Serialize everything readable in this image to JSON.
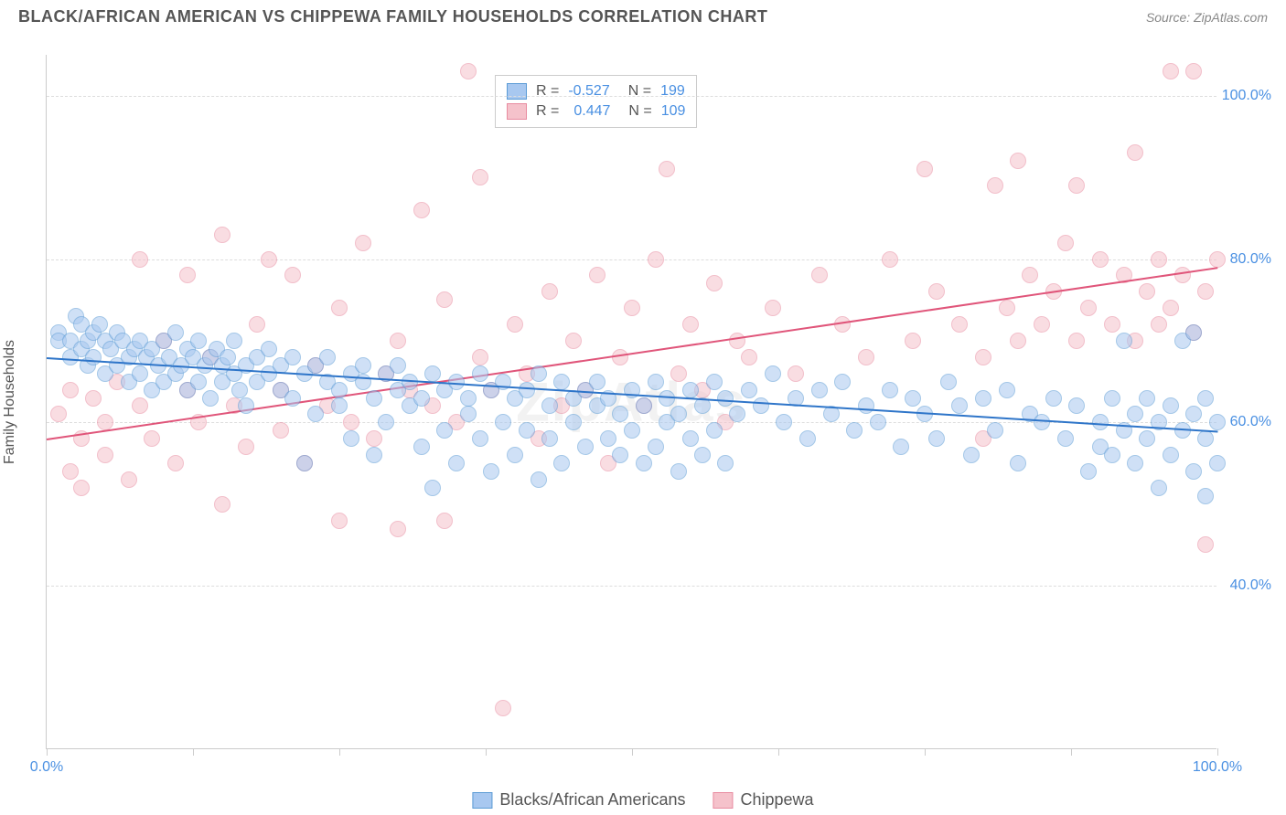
{
  "header": {
    "title": "BLACK/AFRICAN AMERICAN VS CHIPPEWA FAMILY HOUSEHOLDS CORRELATION CHART",
    "source": "Source: ZipAtlas.com"
  },
  "watermark": "ZipAtlas",
  "chart": {
    "type": "scatter",
    "y_axis_label": "Family Households",
    "xlim": [
      0,
      100
    ],
    "ylim": [
      20,
      105
    ],
    "ytick_values": [
      40,
      60,
      80,
      100
    ],
    "ytick_labels": [
      "40.0%",
      "60.0%",
      "80.0%",
      "100.0%"
    ],
    "xtick_values": [
      0,
      12.5,
      25,
      37.5,
      50,
      62.5,
      75,
      87.5,
      100
    ],
    "xtick_labels_shown": {
      "0": "0.0%",
      "100": "100.0%"
    },
    "grid_color": "#dddddd",
    "axis_color": "#cccccc",
    "background_color": "#ffffff",
    "ytick_label_color": "#4a90e2",
    "xtick_label_color": "#4a90e2",
    "marker_radius": 9,
    "marker_opacity": 0.55,
    "marker_border_width": 1,
    "series": {
      "blue": {
        "label": "Blacks/African Americans",
        "fill_color": "#a8c8f0",
        "border_color": "#5b9bd5",
        "R": "-0.527",
        "N": "199",
        "trendline": {
          "x1": 0,
          "y1": 68,
          "x2": 100,
          "y2": 59,
          "color": "#2e75c9",
          "width": 2
        },
        "points": [
          [
            1,
            71
          ],
          [
            1,
            70
          ],
          [
            2,
            70
          ],
          [
            2,
            68
          ],
          [
            2.5,
            73
          ],
          [
            3,
            72
          ],
          [
            3,
            69
          ],
          [
            3.5,
            70
          ],
          [
            3.5,
            67
          ],
          [
            4,
            71
          ],
          [
            4,
            68
          ],
          [
            4.5,
            72
          ],
          [
            5,
            70
          ],
          [
            5,
            66
          ],
          [
            5.5,
            69
          ],
          [
            6,
            71
          ],
          [
            6,
            67
          ],
          [
            6.5,
            70
          ],
          [
            7,
            68
          ],
          [
            7,
            65
          ],
          [
            7.5,
            69
          ],
          [
            8,
            70
          ],
          [
            8,
            66
          ],
          [
            8.5,
            68
          ],
          [
            9,
            69
          ],
          [
            9,
            64
          ],
          [
            9.5,
            67
          ],
          [
            10,
            70
          ],
          [
            10,
            65
          ],
          [
            10.5,
            68
          ],
          [
            11,
            71
          ],
          [
            11,
            66
          ],
          [
            11.5,
            67
          ],
          [
            12,
            69
          ],
          [
            12,
            64
          ],
          [
            12.5,
            68
          ],
          [
            13,
            70
          ],
          [
            13,
            65
          ],
          [
            13.5,
            67
          ],
          [
            14,
            68
          ],
          [
            14,
            63
          ],
          [
            14.5,
            69
          ],
          [
            15,
            67
          ],
          [
            15,
            65
          ],
          [
            15.5,
            68
          ],
          [
            16,
            66
          ],
          [
            16,
            70
          ],
          [
            16.5,
            64
          ],
          [
            17,
            67
          ],
          [
            17,
            62
          ],
          [
            18,
            68
          ],
          [
            18,
            65
          ],
          [
            19,
            66
          ],
          [
            19,
            69
          ],
          [
            20,
            64
          ],
          [
            20,
            67
          ],
          [
            21,
            68
          ],
          [
            21,
            63
          ],
          [
            22,
            66
          ],
          [
            22,
            55
          ],
          [
            23,
            67
          ],
          [
            23,
            61
          ],
          [
            24,
            65
          ],
          [
            24,
            68
          ],
          [
            25,
            64
          ],
          [
            25,
            62
          ],
          [
            26,
            66
          ],
          [
            26,
            58
          ],
          [
            27,
            65
          ],
          [
            27,
            67
          ],
          [
            28,
            63
          ],
          [
            28,
            56
          ],
          [
            29,
            66
          ],
          [
            29,
            60
          ],
          [
            30,
            64
          ],
          [
            30,
            67
          ],
          [
            31,
            65
          ],
          [
            31,
            62
          ],
          [
            32,
            63
          ],
          [
            32,
            57
          ],
          [
            33,
            66
          ],
          [
            33,
            52
          ],
          [
            34,
            64
          ],
          [
            34,
            59
          ],
          [
            35,
            65
          ],
          [
            35,
            55
          ],
          [
            36,
            63
          ],
          [
            36,
            61
          ],
          [
            37,
            66
          ],
          [
            37,
            58
          ],
          [
            38,
            64
          ],
          [
            38,
            54
          ],
          [
            39,
            65
          ],
          [
            39,
            60
          ],
          [
            40,
            63
          ],
          [
            40,
            56
          ],
          [
            41,
            64
          ],
          [
            41,
            59
          ],
          [
            42,
            66
          ],
          [
            42,
            53
          ],
          [
            43,
            62
          ],
          [
            43,
            58
          ],
          [
            44,
            65
          ],
          [
            44,
            55
          ],
          [
            45,
            63
          ],
          [
            45,
            60
          ],
          [
            46,
            64
          ],
          [
            46,
            57
          ],
          [
            47,
            62
          ],
          [
            47,
            65
          ],
          [
            48,
            63
          ],
          [
            48,
            58
          ],
          [
            49,
            61
          ],
          [
            49,
            56
          ],
          [
            50,
            64
          ],
          [
            50,
            59
          ],
          [
            51,
            62
          ],
          [
            51,
            55
          ],
          [
            52,
            65
          ],
          [
            52,
            57
          ],
          [
            53,
            63
          ],
          [
            53,
            60
          ],
          [
            54,
            61
          ],
          [
            54,
            54
          ],
          [
            55,
            64
          ],
          [
            55,
            58
          ],
          [
            56,
            62
          ],
          [
            56,
            56
          ],
          [
            57,
            65
          ],
          [
            57,
            59
          ],
          [
            58,
            63
          ],
          [
            58,
            55
          ],
          [
            59,
            61
          ],
          [
            60,
            64
          ],
          [
            61,
            62
          ],
          [
            62,
            66
          ],
          [
            63,
            60
          ],
          [
            64,
            63
          ],
          [
            65,
            58
          ],
          [
            66,
            64
          ],
          [
            67,
            61
          ],
          [
            68,
            65
          ],
          [
            69,
            59
          ],
          [
            70,
            62
          ],
          [
            71,
            60
          ],
          [
            72,
            64
          ],
          [
            73,
            57
          ],
          [
            74,
            63
          ],
          [
            75,
            61
          ],
          [
            76,
            58
          ],
          [
            77,
            65
          ],
          [
            78,
            62
          ],
          [
            79,
            56
          ],
          [
            80,
            63
          ],
          [
            81,
            59
          ],
          [
            82,
            64
          ],
          [
            83,
            55
          ],
          [
            84,
            61
          ],
          [
            85,
            60
          ],
          [
            86,
            63
          ],
          [
            87,
            58
          ],
          [
            88,
            62
          ],
          [
            89,
            54
          ],
          [
            90,
            60
          ],
          [
            90,
            57
          ],
          [
            91,
            63
          ],
          [
            91,
            56
          ],
          [
            92,
            59
          ],
          [
            92,
            70
          ],
          [
            93,
            61
          ],
          [
            93,
            55
          ],
          [
            94,
            58
          ],
          [
            94,
            63
          ],
          [
            95,
            60
          ],
          [
            95,
            52
          ],
          [
            96,
            62
          ],
          [
            96,
            56
          ],
          [
            97,
            59
          ],
          [
            97,
            70
          ],
          [
            98,
            61
          ],
          [
            98,
            54
          ],
          [
            98,
            71
          ],
          [
            99,
            58
          ],
          [
            99,
            63
          ],
          [
            99,
            51
          ],
          [
            100,
            60
          ],
          [
            100,
            55
          ]
        ]
      },
      "pink": {
        "label": "Chippewa",
        "fill_color": "#f5c2cb",
        "border_color": "#e88ba0",
        "R": "0.447",
        "N": "109",
        "trendline": {
          "x1": 0,
          "y1": 58,
          "x2": 100,
          "y2": 79,
          "color": "#e0557a",
          "width": 2
        },
        "points": [
          [
            1,
            61
          ],
          [
            2,
            54
          ],
          [
            2,
            64
          ],
          [
            3,
            58
          ],
          [
            3,
            52
          ],
          [
            4,
            63
          ],
          [
            5,
            56
          ],
          [
            5,
            60
          ],
          [
            6,
            65
          ],
          [
            7,
            53
          ],
          [
            8,
            62
          ],
          [
            8,
            80
          ],
          [
            9,
            58
          ],
          [
            10,
            70
          ],
          [
            11,
            55
          ],
          [
            12,
            64
          ],
          [
            12,
            78
          ],
          [
            13,
            60
          ],
          [
            14,
            68
          ],
          [
            15,
            50
          ],
          [
            15,
            83
          ],
          [
            16,
            62
          ],
          [
            17,
            57
          ],
          [
            18,
            72
          ],
          [
            19,
            80
          ],
          [
            20,
            64
          ],
          [
            20,
            59
          ],
          [
            21,
            78
          ],
          [
            22,
            55
          ],
          [
            23,
            67
          ],
          [
            24,
            62
          ],
          [
            25,
            48
          ],
          [
            25,
            74
          ],
          [
            26,
            60
          ],
          [
            27,
            82
          ],
          [
            28,
            58
          ],
          [
            29,
            66
          ],
          [
            30,
            47
          ],
          [
            30,
            70
          ],
          [
            31,
            64
          ],
          [
            32,
            86
          ],
          [
            33,
            62
          ],
          [
            34,
            48
          ],
          [
            34,
            75
          ],
          [
            35,
            60
          ],
          [
            36,
            103
          ],
          [
            37,
            68
          ],
          [
            37,
            90
          ],
          [
            38,
            64
          ],
          [
            39,
            25
          ],
          [
            40,
            72
          ],
          [
            41,
            66
          ],
          [
            42,
            58
          ],
          [
            43,
            76
          ],
          [
            44,
            62
          ],
          [
            45,
            70
          ],
          [
            46,
            64
          ],
          [
            47,
            78
          ],
          [
            48,
            55
          ],
          [
            49,
            68
          ],
          [
            50,
            74
          ],
          [
            51,
            62
          ],
          [
            52,
            80
          ],
          [
            53,
            91
          ],
          [
            54,
            66
          ],
          [
            55,
            72
          ],
          [
            56,
            64
          ],
          [
            57,
            77
          ],
          [
            58,
            60
          ],
          [
            59,
            70
          ],
          [
            60,
            68
          ],
          [
            62,
            74
          ],
          [
            64,
            66
          ],
          [
            66,
            78
          ],
          [
            68,
            72
          ],
          [
            70,
            68
          ],
          [
            72,
            80
          ],
          [
            74,
            70
          ],
          [
            75,
            91
          ],
          [
            76,
            76
          ],
          [
            78,
            72
          ],
          [
            80,
            68
          ],
          [
            80,
            58
          ],
          [
            81,
            89
          ],
          [
            82,
            74
          ],
          [
            83,
            70
          ],
          [
            83,
            92
          ],
          [
            84,
            78
          ],
          [
            85,
            72
          ],
          [
            86,
            76
          ],
          [
            87,
            82
          ],
          [
            88,
            89
          ],
          [
            88,
            70
          ],
          [
            89,
            74
          ],
          [
            90,
            80
          ],
          [
            91,
            72
          ],
          [
            92,
            78
          ],
          [
            93,
            93
          ],
          [
            93,
            70
          ],
          [
            94,
            76
          ],
          [
            95,
            72
          ],
          [
            95,
            80
          ],
          [
            96,
            103
          ],
          [
            96,
            74
          ],
          [
            97,
            78
          ],
          [
            98,
            71
          ],
          [
            98,
            103
          ],
          [
            99,
            76
          ],
          [
            99,
            45
          ],
          [
            100,
            80
          ]
        ]
      }
    }
  },
  "legend": {
    "items": [
      {
        "key": "blue",
        "label": "Blacks/African Americans"
      },
      {
        "key": "pink",
        "label": "Chippewa"
      }
    ]
  }
}
